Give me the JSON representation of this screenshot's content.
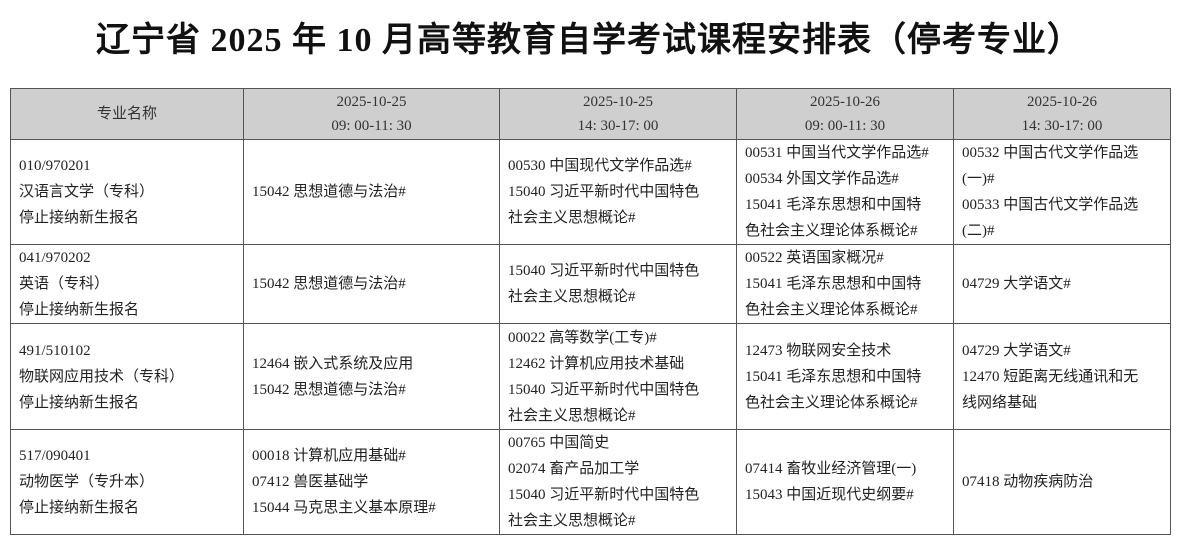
{
  "title": "辽宁省 2025 年 10 月高等教育自学考试课程安排表（停考专业）",
  "headers": [
    {
      "line1": "专业名称",
      "line2": ""
    },
    {
      "line1": "2025-10-25",
      "line2": "09: 00-11: 30"
    },
    {
      "line1": "2025-10-25",
      "line2": "14: 30-17: 00"
    },
    {
      "line1": "2025-10-26",
      "line2": "09: 00-11: 30"
    },
    {
      "line1": "2025-10-26",
      "line2": "14: 30-17: 00"
    }
  ],
  "rows": [
    {
      "cells": [
        [
          "010/970201",
          "汉语言文学（专科）",
          "停止接纳新生报名"
        ],
        [
          "15042  思想道德与法治#"
        ],
        [
          "00530  中国现代文学作品选#",
          "15040  习近平新时代中国特色",
          "社会主义思想概论#"
        ],
        [
          "00531  中国当代文学作品选#",
          "00534  外国文学作品选#",
          "15041  毛泽东思想和中国特",
          "色社会主义理论体系概论#"
        ],
        [
          "00532  中国古代文学作品选",
          "(一)#",
          "00533  中国古代文学作品选",
          "(二)#"
        ]
      ]
    },
    {
      "cells": [
        [
          "041/970202",
          "英语（专科）",
          "停止接纳新生报名"
        ],
        [
          "15042  思想道德与法治#"
        ],
        [
          "15040  习近平新时代中国特色",
          "社会主义思想概论#"
        ],
        [
          "00522  英语国家概况#",
          "15041  毛泽东思想和中国特",
          "色社会主义理论体系概论#"
        ],
        [
          "04729  大学语文#"
        ]
      ]
    },
    {
      "cells": [
        [
          "491/510102",
          "物联网应用技术（专科）",
          "停止接纳新生报名"
        ],
        [
          "12464  嵌入式系统及应用",
          "15042  思想道德与法治#"
        ],
        [
          "00022  高等数学(工专)#",
          "12462  计算机应用技术基础",
          "15040  习近平新时代中国特色",
          "社会主义思想概论#"
        ],
        [
          "12473  物联网安全技术",
          "15041  毛泽东思想和中国特",
          "色社会主义理论体系概论#"
        ],
        [
          "04729  大学语文#",
          "12470  短距离无线通讯和无",
          "线网络基础"
        ]
      ]
    },
    {
      "cells": [
        [
          "517/090401",
          "动物医学（专升本）",
          "停止接纳新生报名"
        ],
        [
          "00018  计算机应用基础#",
          "07412  兽医基础学",
          "15044  马克思主义基本原理#"
        ],
        [
          "00765  中国简史",
          "02074  畜产品加工学",
          "15040  习近平新时代中国特色",
          "社会主义思想概论#"
        ],
        [
          "07414  畜牧业经济管理(一)",
          "15043  中国近现代史纲要#"
        ],
        [
          "07418  动物疾病防治"
        ]
      ]
    }
  ]
}
